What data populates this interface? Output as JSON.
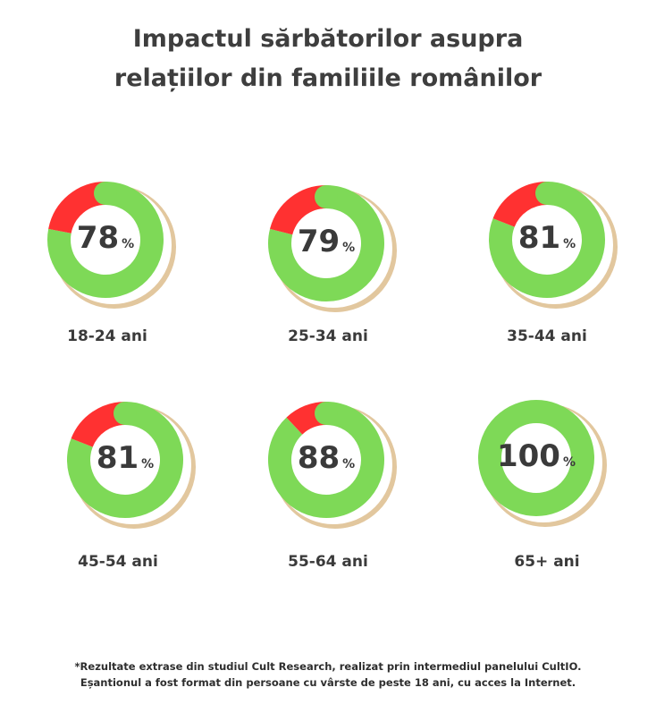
{
  "title_lines": [
    "Impactul sărbătorilor asupra",
    "relațiilor din familiile românilor"
  ],
  "footnote_lines": [
    "*Rezultate extrase din studiul Cult Research, realizat prin intermediul panelului CultIO.",
    "Eșantionul a fost format din persoane cu vârste de peste 18 ani,  cu acces la Internet."
  ],
  "colors": {
    "positive": "#7ed957",
    "negative": "#ff3131",
    "shadow": "#e2c79e",
    "text": "#3a3a3a"
  },
  "chart_data": {
    "type": "pie",
    "subtype": "donut-grid",
    "title": "Impactul sărbătorilor asupra relațiilor din familiile românilor",
    "unit": "%",
    "categories": [
      "18-24 ani",
      "25-34 ani",
      "35-44 ani",
      "45-54 ani",
      "55-64 ani",
      "65+ ani"
    ],
    "values": [
      78,
      79,
      81,
      81,
      88,
      100
    ]
  }
}
